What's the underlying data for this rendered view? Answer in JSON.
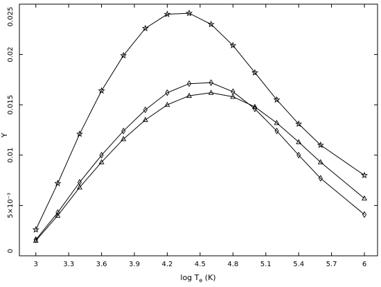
{
  "chart_data": {
    "type": "line",
    "xlabel_main": "log T",
    "xlabel_sub": "e",
    "xlabel_unit": " (K)",
    "ylabel": "Υ",
    "xlim": [
      2.85,
      6.12
    ],
    "ylim": [
      0,
      0.025
    ],
    "xticks": [
      3,
      3.3,
      3.6,
      3.9,
      4.2,
      4.5,
      4.8,
      5.1,
      5.4,
      5.7,
      6
    ],
    "xtick_labels": [
      "3",
      "3.3",
      "3.6",
      "3.9",
      "4.2",
      "4.5",
      "4.8",
      "5.1",
      "5.4",
      "5.7",
      "6"
    ],
    "yticks": [
      0,
      0.005,
      0.01,
      0.015,
      0.02,
      0.025
    ],
    "ytick_labels": [
      "0",
      "5×10⁻³",
      "0.01",
      "0.015",
      "0.02",
      "0.025"
    ],
    "grid": false,
    "series": [
      {
        "marker": "star",
        "x": [
          3.0,
          3.2,
          3.4,
          3.6,
          3.8,
          4.0,
          4.2,
          4.4,
          4.6,
          4.8,
          5.0,
          5.2,
          5.4,
          5.6,
          6.0
        ],
        "y": [
          0.0026,
          0.0072,
          0.0121,
          0.0164,
          0.0199,
          0.0226,
          0.024,
          0.0241,
          0.023,
          0.0209,
          0.0182,
          0.0155,
          0.0131,
          0.011,
          0.008
        ]
      },
      {
        "marker": "diamond",
        "x": [
          3.0,
          3.2,
          3.4,
          3.6,
          3.8,
          4.0,
          4.2,
          4.4,
          4.6,
          4.8,
          5.0,
          5.2,
          5.4,
          5.6,
          6.0
        ],
        "y": [
          0.0016,
          0.0043,
          0.0073,
          0.01,
          0.0124,
          0.0145,
          0.0162,
          0.0171,
          0.0172,
          0.0163,
          0.0146,
          0.0124,
          0.01,
          0.0077,
          0.0041
        ]
      },
      {
        "marker": "triangle",
        "x": [
          3.0,
          3.2,
          3.4,
          3.6,
          3.8,
          4.0,
          4.2,
          4.4,
          4.6,
          4.8,
          5.0,
          5.2,
          5.4,
          5.6,
          6.0
        ],
        "y": [
          0.0015,
          0.004,
          0.0068,
          0.0093,
          0.0116,
          0.0135,
          0.015,
          0.0159,
          0.0162,
          0.0158,
          0.0148,
          0.0132,
          0.0113,
          0.0093,
          0.0057
        ]
      }
    ]
  }
}
